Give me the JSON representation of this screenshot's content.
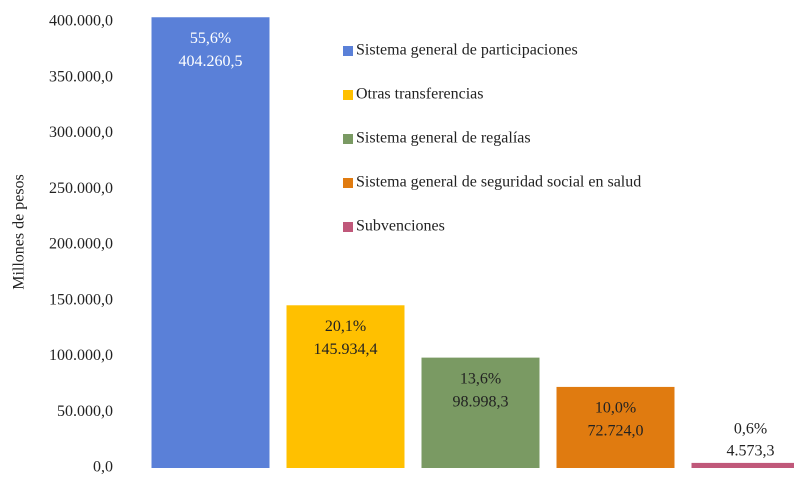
{
  "chart_data": {
    "type": "bar",
    "y_label": "Millones  de pesos",
    "ylim": [
      0,
      400000
    ],
    "yticks": [
      {
        "value": 0,
        "label": "0,0"
      },
      {
        "value": 50000,
        "label": "50.000,0"
      },
      {
        "value": 100000,
        "label": "100.000,0"
      },
      {
        "value": 150000,
        "label": "150.000,0"
      },
      {
        "value": 200000,
        "label": "200.000,0"
      },
      {
        "value": 250000,
        "label": "250.000,0"
      },
      {
        "value": 300000,
        "label": "300.000,0"
      },
      {
        "value": 350000,
        "label": "350.000,0"
      },
      {
        "value": 400000,
        "label": "400.000,0"
      }
    ],
    "grid": false,
    "legend": "top-right",
    "series": [
      {
        "name": "Sistema general de participaciones",
        "color": "#5a80d8",
        "values": [
          404260.5
        ],
        "value_labels": [
          "404.260,5"
        ],
        "share_labels": [
          "55,6%"
        ]
      },
      {
        "name": "Otras transferencias",
        "color": "#ffc000",
        "values": [
          145934.4
        ],
        "value_labels": [
          "145.934,4"
        ],
        "share_labels": [
          "20,1%"
        ]
      },
      {
        "name": "Sistema general de regalías",
        "color": "#7a9a63",
        "values": [
          98998.3
        ],
        "value_labels": [
          "98.998,3"
        ],
        "share_labels": [
          "13,6%"
        ]
      },
      {
        "name": "Sistema general de seguridad social en salud",
        "color": "#e07b10",
        "values": [
          72724.0
        ],
        "value_labels": [
          "72.724,0"
        ],
        "share_labels": [
          "10,0%"
        ]
      },
      {
        "name": "Subvenciones",
        "color": "#c0587a",
        "values": [
          4573.3
        ],
        "value_labels": [
          "4.573,3"
        ],
        "share_labels": [
          "0,6%"
        ]
      }
    ]
  }
}
